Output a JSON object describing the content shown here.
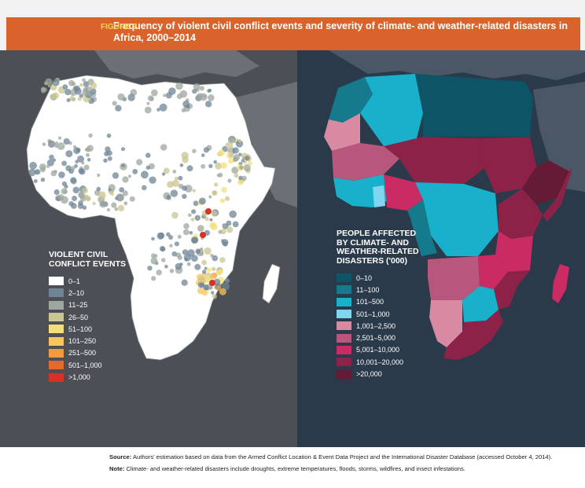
{
  "figure": {
    "label": "FIGURE 2",
    "title": "Frequency of violent civil conflict events and severity of climate- and weather-related disasters in Africa, 2000–2014"
  },
  "left_map": {
    "legend_title": "VIOLENT CIVIL\nCONFLICT EVENTS",
    "legend": [
      {
        "label": "0–1",
        "color": "#ffffff"
      },
      {
        "label": "2–10",
        "color": "#6f8596"
      },
      {
        "label": "11–25",
        "color": "#9ea79e"
      },
      {
        "label": "26–50",
        "color": "#c9c68f"
      },
      {
        "label": "51–100",
        "color": "#f1e07a"
      },
      {
        "label": "101–250",
        "color": "#f8c55a"
      },
      {
        "label": "251–500",
        "color": "#f39a3e"
      },
      {
        "label": "501–1,000",
        "color": "#e8692e"
      },
      {
        "label": ">1,000",
        "color": "#d93127"
      }
    ]
  },
  "right_map": {
    "legend_title": "PEOPLE AFFECTED\nBY CLIMATE- AND\nWEATHER-RELATED\nDISASTERS ('000)",
    "legend": [
      {
        "label": "0–10",
        "color": "#0d5466"
      },
      {
        "label": "11–100",
        "color": "#157a8c"
      },
      {
        "label": "101–500",
        "color": "#19b0cc"
      },
      {
        "label": "501–1,000",
        "color": "#7fd6ee"
      },
      {
        "label": "1,001–2,500",
        "color": "#d88aa2"
      },
      {
        "label": "2,501–5,000",
        "color": "#b8577b"
      },
      {
        "label": "5,001–10,000",
        "color": "#c92b62"
      },
      {
        "label": "10,001–20,000",
        "color": "#8c2248"
      },
      {
        "label": ">20,000",
        "color": "#651a35"
      }
    ]
  },
  "notes": {
    "source_label": "Source:",
    "source_text": "Authors' estimation based on data from the Armed Conflict Location & Event Data Project and the International Disaster Database (accessed October 4, 2014).",
    "note_label": "Note:",
    "note_text": "Climate- and weather-related disasters include droughts, extreme temperatures, floods, storms, wildfires, and insect infestations."
  }
}
